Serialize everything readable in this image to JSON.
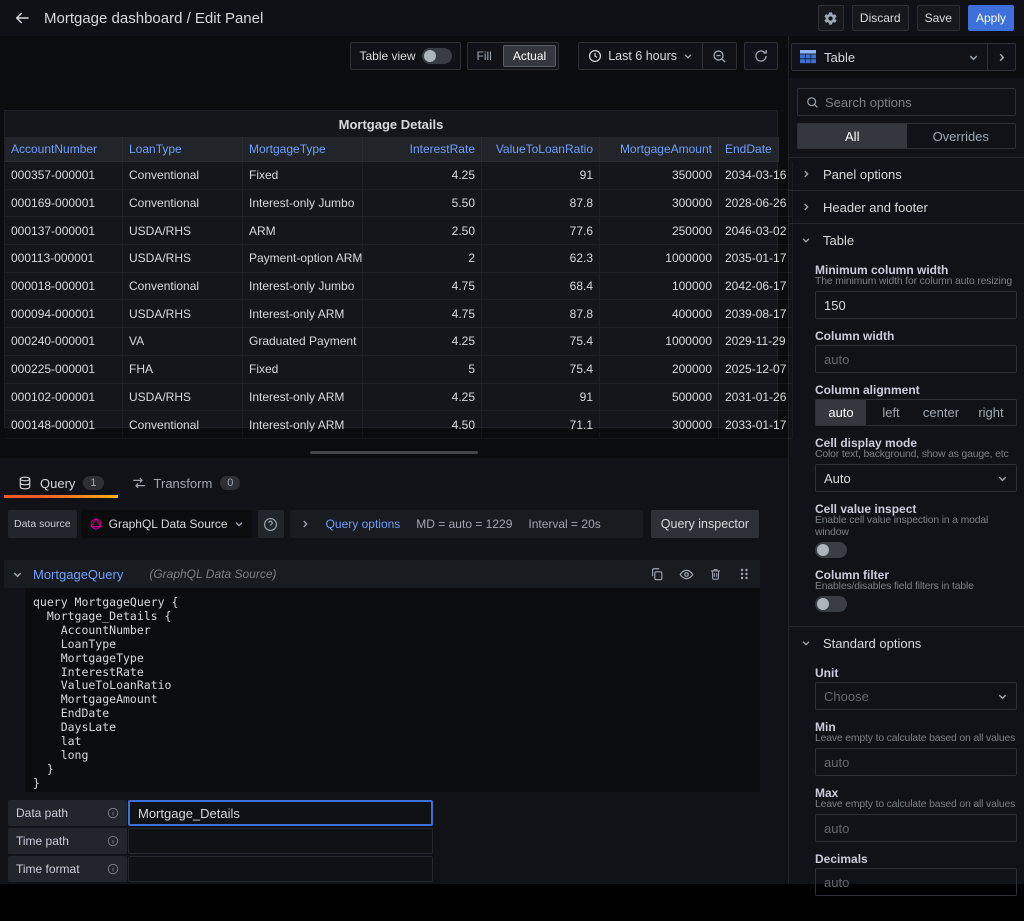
{
  "colors": {
    "accent_blue": "#3d71d9",
    "link_blue": "#6e9fff",
    "tab_orange": "#f05a28",
    "graphql_pink": "#e10098"
  },
  "topbar": {
    "title": "Mortgage dashboard / Edit Panel",
    "discard": "Discard",
    "save": "Save",
    "apply": "Apply"
  },
  "toolbar": {
    "table_view": "Table view",
    "fill": "Fill",
    "actual": "Actual",
    "time_range": "Last 6 hours"
  },
  "panel": {
    "title": "Mortgage Details",
    "table": {
      "columns": [
        "AccountNumber",
        "LoanType",
        "MortgageType",
        "InterestRate",
        "ValueToLoanRatio",
        "MortgageAmount",
        "EndDate"
      ],
      "align": [
        "left",
        "left",
        "left",
        "right",
        "right",
        "right",
        "left"
      ],
      "rows": [
        [
          "000357-000001",
          "Conventional",
          "Fixed",
          "4.25",
          "91",
          "350000",
          "2034-03-16"
        ],
        [
          "000169-000001",
          "Conventional",
          "Interest-only Jumbo",
          "5.50",
          "87.8",
          "300000",
          "2028-06-26"
        ],
        [
          "000137-000001",
          "USDA/RHS",
          "ARM",
          "2.50",
          "77.6",
          "250000",
          "2046-03-02"
        ],
        [
          "000113-000001",
          "USDA/RHS",
          "Payment-option ARM",
          "2",
          "62.3",
          "1000000",
          "2035-01-17"
        ],
        [
          "000018-000001",
          "Conventional",
          "Interest-only Jumbo",
          "4.75",
          "68.4",
          "100000",
          "2042-06-17"
        ],
        [
          "000094-000001",
          "USDA/RHS",
          "Interest-only ARM",
          "4.75",
          "87.8",
          "400000",
          "2039-08-17"
        ],
        [
          "000240-000001",
          "VA",
          "Graduated Payment",
          "4.25",
          "75.4",
          "1000000",
          "2029-11-29"
        ],
        [
          "000225-000001",
          "FHA",
          "Fixed",
          "5",
          "75.4",
          "200000",
          "2025-12-07"
        ],
        [
          "000102-000001",
          "USDA/RHS",
          "Interest-only ARM",
          "4.25",
          "91",
          "500000",
          "2031-01-26"
        ],
        [
          "000148-000001",
          "Conventional",
          "Interest-only ARM",
          "4.50",
          "71.1",
          "300000",
          "2033-01-17"
        ]
      ]
    }
  },
  "query_section": {
    "tabs": {
      "query": "Query",
      "query_count": "1",
      "transform": "Transform",
      "transform_count": "0"
    },
    "datasource_label": "Data source",
    "datasource_name": "GraphQL Data Source",
    "query_options": {
      "label": "Query options",
      "md": "MD = auto = 1229",
      "interval": "Interval = 20s"
    },
    "inspector": "Query inspector",
    "query": {
      "name": "MortgageQuery",
      "hint": "(GraphQL Data Source)",
      "code_lines": [
        "query MortgageQuery {",
        "  Mortgage_Details {",
        "    AccountNumber",
        "    LoanType",
        "    MortgageType",
        "    InterestRate",
        "    ValueToLoanRatio",
        "    MortgageAmount",
        "    EndDate",
        "    DaysLate",
        "    lat",
        "    long",
        "  }",
        "}"
      ]
    },
    "fields": {
      "data_path": {
        "label": "Data path",
        "value": "Mortgage_Details"
      },
      "time_path": {
        "label": "Time path",
        "value": ""
      },
      "time_format": {
        "label": "Time format",
        "value": ""
      }
    }
  },
  "sidebar": {
    "viz_name": "Table",
    "search_placeholder": "Search options",
    "tabs": {
      "all": "All",
      "overrides": "Overrides"
    },
    "sections": {
      "panel_options": "Panel options",
      "header_footer": "Header and footer",
      "table": "Table",
      "standard_options": "Standard options"
    },
    "table_options": {
      "min_col_width": {
        "label": "Minimum column width",
        "desc": "The minimum width for column auto resizing",
        "value": "150"
      },
      "col_width": {
        "label": "Column width",
        "placeholder": "auto"
      },
      "col_alignment": {
        "label": "Column alignment",
        "options": [
          "auto",
          "left",
          "center",
          "right"
        ],
        "selected": "auto"
      },
      "cell_display": {
        "label": "Cell display mode",
        "desc": "Color text, background, show as gauge, etc",
        "value": "Auto"
      },
      "cell_inspect": {
        "label": "Cell value inspect",
        "desc": "Enable cell value inspection in a modal window",
        "enabled": false
      },
      "column_filter": {
        "label": "Column filter",
        "desc": "Enables/disables field filters in table",
        "enabled": false
      }
    },
    "standard_options": {
      "unit": {
        "label": "Unit",
        "placeholder": "Choose"
      },
      "min": {
        "label": "Min",
        "desc": "Leave empty to calculate based on all values",
        "placeholder": "auto"
      },
      "max": {
        "label": "Max",
        "desc": "Leave empty to calculate based on all values",
        "placeholder": "auto"
      },
      "decimals": {
        "label": "Decimals",
        "placeholder": "auto"
      }
    }
  }
}
